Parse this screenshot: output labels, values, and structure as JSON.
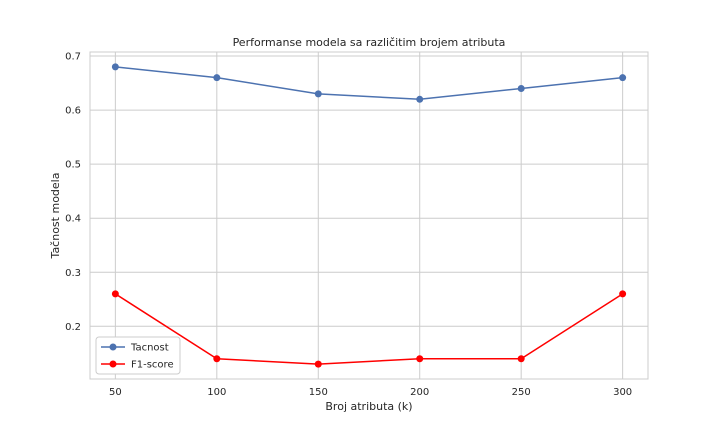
{
  "chart_data": {
    "type": "line",
    "title": "Performanse modela sa različitim brojem atributa",
    "xlabel": "Broj atributa (k)",
    "ylabel": "Tačnost modela",
    "x": [
      50,
      100,
      150,
      200,
      250,
      300
    ],
    "xticks": [
      "50",
      "100",
      "150",
      "200",
      "250",
      "300"
    ],
    "yticks": [
      "0.2",
      "0.3",
      "0.4",
      "0.5",
      "0.6",
      "0.7"
    ],
    "xlim": [
      37.5,
      312.5
    ],
    "ylim": [
      0.1025,
      0.7075
    ],
    "grid": true,
    "legend_position": "lower-left",
    "series": [
      {
        "name": "Tacnost",
        "color": "#4c72b0",
        "marker": "circle",
        "values": [
          0.68,
          0.66,
          0.63,
          0.62,
          0.64,
          0.66
        ]
      },
      {
        "name": "F1-score",
        "color": "#ff0000",
        "marker": "circle",
        "values": [
          0.26,
          0.14,
          0.13,
          0.14,
          0.14,
          0.26
        ]
      }
    ]
  }
}
